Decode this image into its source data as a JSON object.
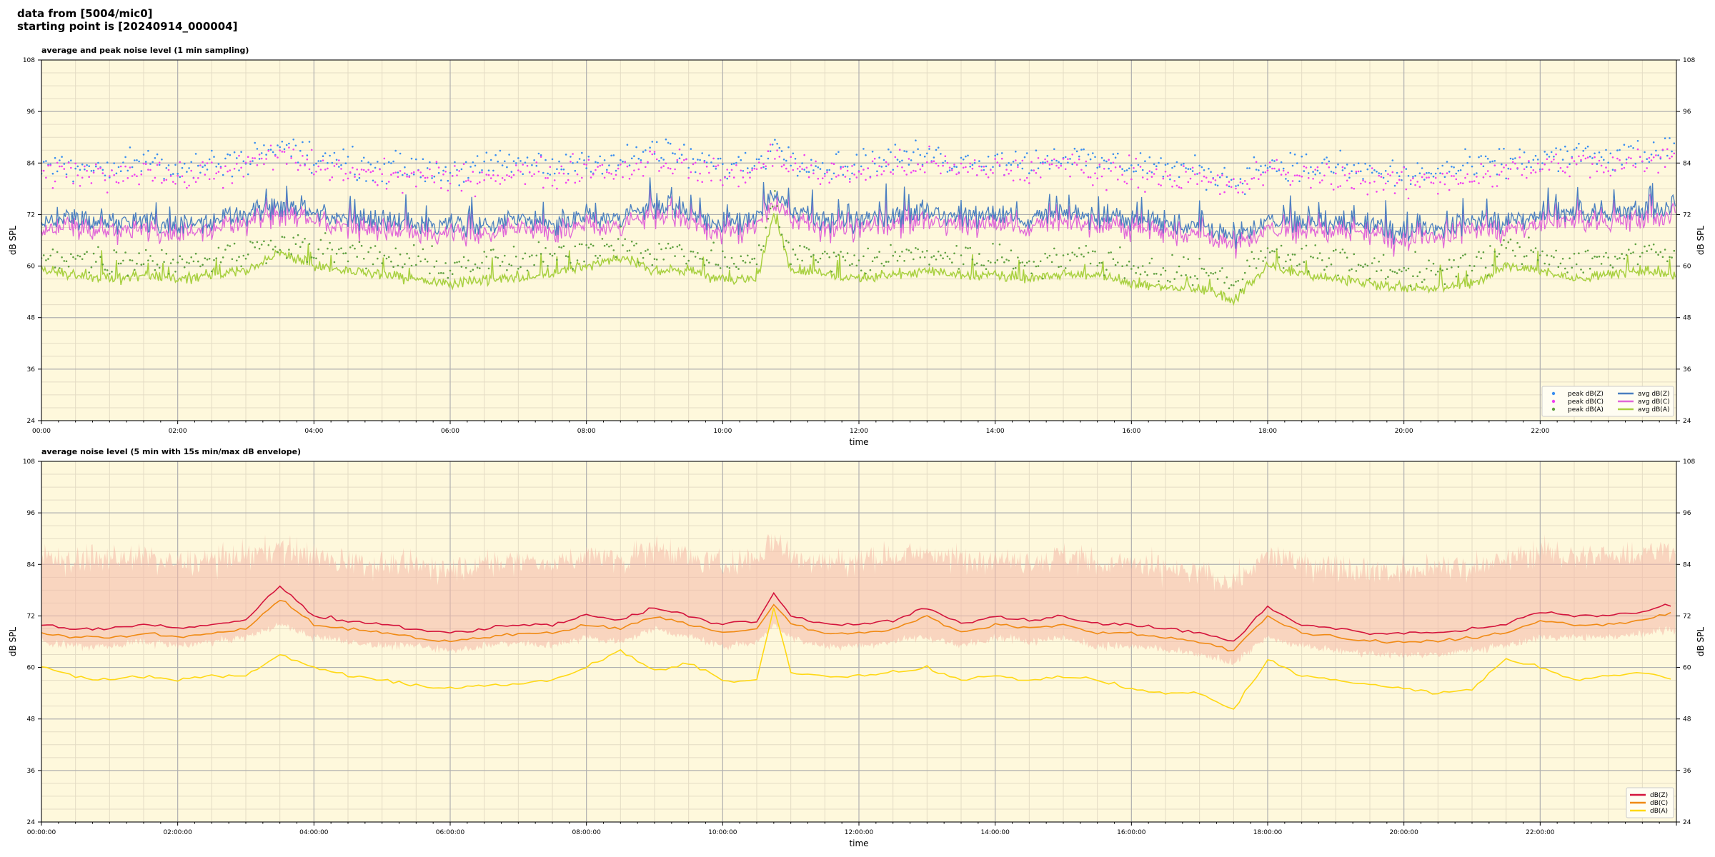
{
  "header": {
    "line1": "data from [5004/mic0]",
    "line2": "starting point is [20240914_000004]"
  },
  "colors": {
    "background": "#fef8dc",
    "grid_major": "#b0b0b0",
    "grid_minor": "#e4dcc4",
    "z": "#4a7fc0",
    "c": "#e066d8",
    "a": "#a8d040",
    "peak_z": "#3a8ef0",
    "peak_c": "#f040f0",
    "peak_a": "#60a040",
    "avg5_z": "#d4143c",
    "avg5_c": "#f08a14",
    "avg5_a": "#ffd814",
    "envelope": "#f4b8a8"
  },
  "chart_data": [
    {
      "type": "line",
      "title": "average and peak noise level (1 min sampling)",
      "xlabel": "time",
      "ylabel": "dB SPL",
      "ylabel_right": "dB SPL",
      "xlim": [
        0,
        24
      ],
      "ylim": [
        24,
        108
      ],
      "yticks": [
        "24",
        "36",
        "48",
        "60",
        "72",
        "84",
        "96",
        "108"
      ],
      "xticks": [
        "00:00",
        "02:00",
        "04:00",
        "06:00",
        "08:00",
        "10:00",
        "12:00",
        "14:00",
        "16:00",
        "18:00",
        "20:00",
        "22:00"
      ],
      "grid": true,
      "legend_position": "lower-right",
      "legend": [
        {
          "label": "peak dB(Z)",
          "kind": "dot",
          "color": "#3a8ef0"
        },
        {
          "label": "peak dB(C)",
          "kind": "dot",
          "color": "#f040f0"
        },
        {
          "label": "peak dB(A)",
          "kind": "dot",
          "color": "#60a040"
        },
        {
          "label": "avg dB(Z)",
          "kind": "line",
          "color": "#4a7fc0"
        },
        {
          "label": "avg dB(C)",
          "kind": "line",
          "color": "#e066d8"
        },
        {
          "label": "avg dB(A)",
          "kind": "line",
          "color": "#a8d040"
        }
      ],
      "x": [
        0,
        0.5,
        1,
        1.5,
        2,
        2.5,
        3,
        3.5,
        4,
        4.5,
        5,
        5.5,
        6,
        6.5,
        7,
        7.5,
        8,
        8.5,
        9,
        9.5,
        10,
        10.5,
        10.75,
        11,
        11.5,
        12,
        12.5,
        13,
        13.5,
        14,
        14.5,
        15,
        15.5,
        16,
        16.5,
        17,
        17.5,
        18,
        18.5,
        19,
        19.5,
        20,
        20.5,
        21,
        21.5,
        22,
        22.5,
        23,
        23.5,
        24
      ],
      "series": [
        {
          "name": "avg dB(Z)",
          "values": [
            70,
            71,
            70,
            71,
            69,
            71,
            72,
            74,
            72,
            71,
            70,
            70,
            69,
            70,
            71,
            70,
            72,
            71,
            74,
            72,
            70,
            71,
            77,
            73,
            70,
            71,
            72,
            73,
            71,
            72,
            71,
            73,
            71,
            71,
            70,
            69,
            67,
            71,
            70,
            70,
            69,
            68,
            69,
            70,
            71,
            72,
            73,
            72,
            73,
            74
          ]
        },
        {
          "name": "avg dB(C)",
          "values": [
            68,
            69,
            68,
            69,
            67,
            69,
            70,
            72,
            70,
            69,
            68,
            68,
            67,
            68,
            69,
            68,
            70,
            69,
            72,
            70,
            68,
            69,
            75,
            71,
            68,
            69,
            70,
            71,
            69,
            70,
            69,
            71,
            69,
            69,
            68,
            67,
            65,
            69,
            68,
            68,
            67,
            66,
            67,
            68,
            69,
            70,
            71,
            70,
            71,
            72
          ]
        },
        {
          "name": "avg dB(A)",
          "values": [
            59,
            58,
            57,
            58,
            57,
            58,
            59,
            63,
            60,
            59,
            58,
            57,
            56,
            57,
            57,
            58,
            60,
            62,
            59,
            59,
            57,
            57,
            72,
            59,
            58,
            57,
            58,
            59,
            58,
            58,
            57,
            58,
            58,
            56,
            55,
            55,
            52,
            60,
            58,
            57,
            56,
            55,
            55,
            56,
            60,
            59,
            57,
            58,
            59,
            58
          ]
        },
        {
          "name": "peak dB(Z)",
          "values": [
            83,
            84,
            83,
            85,
            82,
            84,
            85,
            88,
            85,
            84,
            83,
            83,
            82,
            83,
            84,
            83,
            85,
            84,
            87,
            85,
            83,
            84,
            88,
            86,
            83,
            84,
            85,
            86,
            84,
            85,
            84,
            86,
            84,
            84,
            83,
            82,
            80,
            84,
            83,
            83,
            82,
            81,
            82,
            83,
            84,
            85,
            86,
            85,
            86,
            87
          ]
        },
        {
          "name": "peak dB(C)",
          "values": [
            81,
            82,
            81,
            83,
            80,
            82,
            83,
            86,
            83,
            82,
            81,
            81,
            80,
            81,
            82,
            81,
            83,
            82,
            85,
            83,
            81,
            82,
            86,
            84,
            81,
            82,
            83,
            84,
            82,
            83,
            82,
            84,
            82,
            82,
            81,
            80,
            78,
            82,
            81,
            81,
            80,
            79,
            80,
            81,
            82,
            83,
            84,
            83,
            84,
            85
          ]
        },
        {
          "name": "peak dB(A)",
          "values": [
            63,
            62,
            61,
            62,
            61,
            62,
            63,
            66,
            64,
            63,
            62,
            61,
            60,
            61,
            61,
            62,
            64,
            66,
            63,
            63,
            61,
            61,
            75,
            63,
            62,
            61,
            62,
            63,
            62,
            62,
            61,
            62,
            62,
            60,
            59,
            59,
            56,
            64,
            62,
            61,
            60,
            59,
            59,
            60,
            64,
            63,
            61,
            62,
            63,
            62
          ]
        }
      ]
    },
    {
      "type": "area",
      "title": "average noise level (5 min with 15s min/max dB envelope)",
      "xlabel": "time",
      "ylabel": "dB SPL",
      "ylabel_right": "dB SPL",
      "xlim": [
        0,
        24
      ],
      "ylim": [
        24,
        108
      ],
      "yticks": [
        "24",
        "36",
        "48",
        "60",
        "72",
        "84",
        "96",
        "108"
      ],
      "xticks": [
        "00:00:00",
        "02:00:00",
        "04:00:00",
        "06:00:00",
        "08:00:00",
        "10:00:00",
        "12:00:00",
        "14:00:00",
        "16:00:00",
        "18:00:00",
        "20:00:00",
        "22:00:00"
      ],
      "grid": true,
      "legend_position": "lower-right",
      "legend": [
        {
          "label": "dB(Z)",
          "kind": "line",
          "color": "#d4143c"
        },
        {
          "label": "dB(C)",
          "kind": "line",
          "color": "#f08a14"
        },
        {
          "label": "dB(A)",
          "kind": "line",
          "color": "#ffd814"
        }
      ],
      "x": [
        0,
        0.5,
        1,
        1.5,
        2,
        2.5,
        3,
        3.5,
        4,
        4.5,
        5,
        5.5,
        6,
        6.5,
        7,
        7.5,
        8,
        8.5,
        9,
        9.5,
        10,
        10.5,
        10.75,
        11,
        11.5,
        12,
        12.5,
        13,
        13.5,
        14,
        14.5,
        15,
        15.5,
        16,
        16.5,
        17,
        17.5,
        18,
        18.5,
        19,
        19.5,
        20,
        20.5,
        21,
        21.5,
        22,
        22.5,
        23,
        23.5,
        24
      ],
      "series": [
        {
          "name": "dB(Z)",
          "values": [
            70,
            69,
            69,
            70,
            69,
            70,
            71,
            79,
            72,
            71,
            70,
            69,
            68,
            69,
            70,
            70,
            72,
            71,
            74,
            72,
            70,
            71,
            77,
            72,
            70,
            70,
            71,
            74,
            70,
            72,
            71,
            72,
            70,
            70,
            69,
            68,
            66,
            74,
            70,
            69,
            68,
            68,
            68,
            69,
            70,
            73,
            72,
            72,
            73,
            75
          ]
        },
        {
          "name": "dB(C)",
          "values": [
            68,
            67,
            67,
            68,
            67,
            68,
            69,
            76,
            70,
            69,
            68,
            67,
            66,
            67,
            68,
            68,
            70,
            69,
            72,
            70,
            68,
            69,
            75,
            70,
            68,
            68,
            69,
            72,
            68,
            70,
            69,
            70,
            68,
            68,
            67,
            66,
            64,
            72,
            68,
            67,
            66,
            66,
            66,
            67,
            68,
            71,
            70,
            70,
            71,
            73
          ]
        },
        {
          "name": "dB(A)",
          "values": [
            60,
            58,
            57,
            58,
            57,
            58,
            58,
            63,
            60,
            58,
            57,
            56,
            55,
            56,
            56,
            57,
            60,
            64,
            59,
            61,
            57,
            57,
            74,
            59,
            58,
            58,
            59,
            60,
            57,
            58,
            57,
            58,
            57,
            55,
            54,
            54,
            50,
            62,
            58,
            57,
            56,
            55,
            54,
            55,
            62,
            60,
            57,
            58,
            59,
            57
          ]
        },
        {
          "name": "max envelope",
          "values": [
            86,
            85,
            85,
            86,
            84,
            85,
            86,
            88,
            86,
            85,
            84,
            84,
            83,
            84,
            85,
            84,
            86,
            85,
            88,
            86,
            84,
            85,
            90,
            86,
            84,
            85,
            86,
            87,
            85,
            86,
            85,
            86,
            84,
            84,
            83,
            82,
            80,
            86,
            84,
            84,
            83,
            82,
            83,
            84,
            85,
            87,
            86,
            86,
            87,
            88
          ]
        },
        {
          "name": "min envelope",
          "values": [
            66,
            65,
            65,
            66,
            65,
            66,
            67,
            70,
            67,
            66,
            65,
            65,
            64,
            65,
            66,
            65,
            67,
            66,
            69,
            67,
            65,
            66,
            70,
            67,
            65,
            65,
            66,
            67,
            65,
            67,
            66,
            67,
            65,
            65,
            64,
            63,
            61,
            67,
            65,
            64,
            63,
            63,
            63,
            64,
            65,
            67,
            67,
            67,
            68,
            69
          ]
        }
      ]
    }
  ]
}
